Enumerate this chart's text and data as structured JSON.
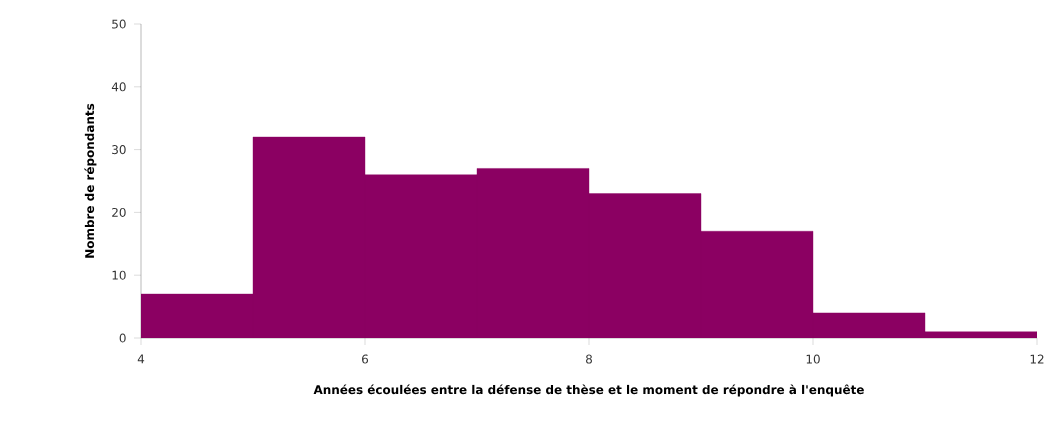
{
  "chart_data": {
    "type": "histogram",
    "xlabel": "Années écoulées entre la défense de thèse et le moment de répondre à l'enquête",
    "ylabel": "Nombre de répondants",
    "bins": [
      4,
      5,
      6,
      7,
      8,
      9,
      10,
      11,
      12
    ],
    "values": [
      7,
      32,
      26,
      27,
      23,
      17,
      4,
      1
    ],
    "color": "#8b0062",
    "xlim": [
      4,
      12
    ],
    "xticks": [
      4,
      6,
      8,
      10,
      12
    ],
    "ylim": [
      0,
      50
    ],
    "yticks": [
      0,
      10,
      20,
      30,
      40,
      50
    ],
    "grid": false
  }
}
